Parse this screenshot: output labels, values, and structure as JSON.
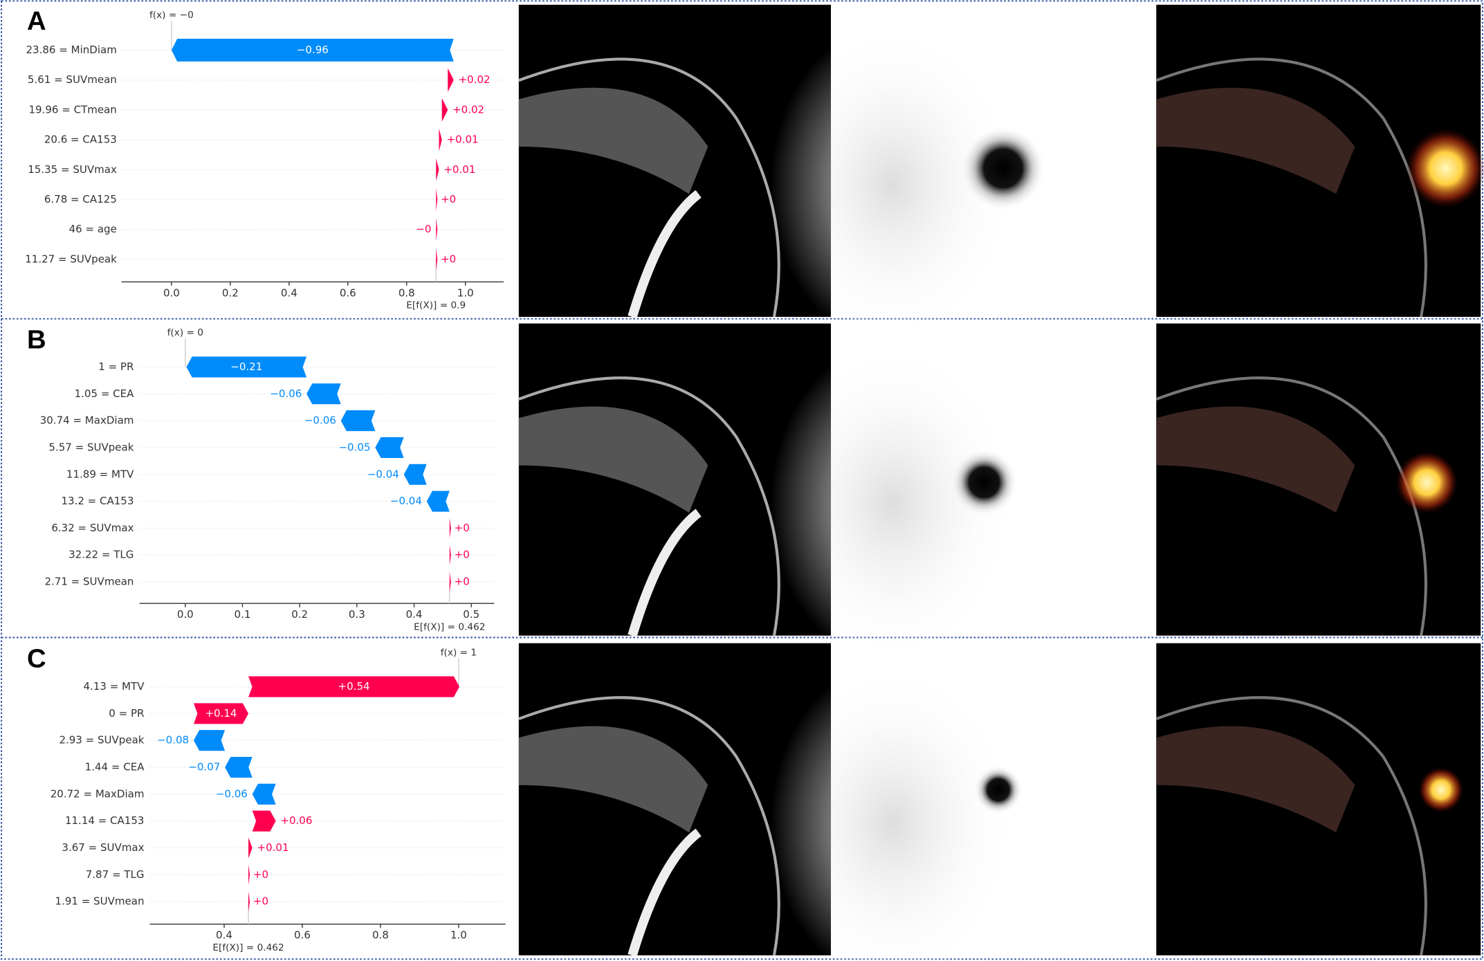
{
  "chart_data": [
    {
      "type": "waterfall",
      "panel": "A",
      "categories": [
        "23.86 = MinDiam",
        "5.61 = SUVmean",
        "19.96 = CTmean",
        "20.6 = CA153",
        "15.35 = SUVmax",
        "6.78 = CA125",
        "46 = age",
        "11.27 = SUVpeak"
      ],
      "values": [
        -0.96,
        0.02,
        0.02,
        0.01,
        0.01,
        0,
        0,
        0
      ],
      "value_labels": [
        "−0.96",
        "+0.02",
        "+0.02",
        "+0.01",
        "+0.01",
        "+0",
        "−0",
        "+0"
      ],
      "output": 0,
      "output_label": "f(x) = −0",
      "base": 0.9,
      "base_label": "E[f(X)] = 0.9",
      "xlim": [
        -0.17,
        1.13
      ],
      "xticks": [
        {
          "value": 0,
          "label": "0.0"
        },
        0.2,
        0.4,
        0.6,
        0.8,
        {
          "value": 1,
          "label": "1.0"
        }
      ],
      "colors": {
        "positive": "#ff0051",
        "negative": "#008bfb"
      }
    },
    {
      "type": "waterfall",
      "panel": "B",
      "categories": [
        "1 = PR",
        "1.05 = CEA",
        "30.74 = MaxDiam",
        "5.57 = SUVpeak",
        "11.89 = MTV",
        "13.2 = CA153",
        "6.32 = SUVmax",
        "32.22 = TLG",
        "2.71 = SUVmean"
      ],
      "values": [
        -0.21,
        -0.06,
        -0.06,
        -0.05,
        -0.04,
        -0.04,
        0,
        0,
        0
      ],
      "value_labels": [
        "−0.21",
        "−0.06",
        "−0.06",
        "−0.05",
        "−0.04",
        "−0.04",
        "+0",
        "+0",
        "+0"
      ],
      "output": 0,
      "output_label": "f(x) = 0",
      "base": 0.462,
      "base_label": "E[f(X)] = 0.462",
      "xlim": [
        -0.08,
        0.54
      ],
      "xticks": [
        {
          "value": 0,
          "label": "0.0"
        },
        0.1,
        0.2,
        0.3,
        0.4,
        0.5
      ],
      "colors": {
        "positive": "#ff0051",
        "negative": "#008bfb"
      }
    },
    {
      "type": "waterfall",
      "panel": "C",
      "categories": [
        "4.13 = MTV",
        "0 = PR",
        "2.93 = SUVpeak",
        "1.44 = CEA",
        "20.72 = MaxDiam",
        "11.14 = CA153",
        "3.67 = SUVmax",
        "7.87 = TLG",
        "1.91 = SUVmean"
      ],
      "values": [
        0.54,
        0.14,
        -0.08,
        -0.07,
        -0.06,
        0.06,
        0.01,
        0,
        0
      ],
      "value_labels": [
        "+0.54",
        "+0.14",
        "−0.08",
        "−0.07",
        "−0.06",
        "+0.06",
        "+0.01",
        "+0",
        "+0"
      ],
      "output": 1,
      "output_label": "f(x) = 1",
      "base": 0.462,
      "base_label": "E[f(X)] = 0.462",
      "xlim": [
        0.21,
        1.12
      ],
      "xticks": [
        0.4,
        0.6,
        0.8,
        {
          "value": 1,
          "label": "1.0"
        }
      ],
      "colors": {
        "positive": "#ff0051",
        "negative": "#008bfb"
      }
    }
  ]
}
